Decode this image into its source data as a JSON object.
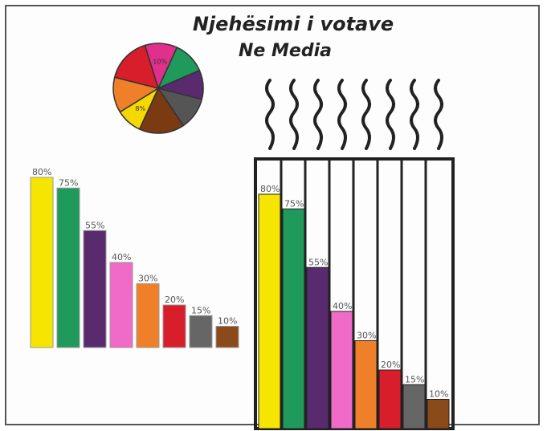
{
  "chart_data": [
    {
      "type": "pie",
      "title": "Njehësimi i votave",
      "subtitle": "Ne Media",
      "slices": [
        {
          "label": "10%",
          "value": 10,
          "color": "#e0308c"
        },
        {
          "label": "",
          "value": 10,
          "color": "#1f9a5a"
        },
        {
          "label": "",
          "value": 9,
          "color": "#5a2a6e"
        },
        {
          "label": "",
          "value": 10,
          "color": "#555555"
        },
        {
          "label": "",
          "value": 14,
          "color": "#7a3a12"
        },
        {
          "label": "8%",
          "value": 8,
          "color": "#f5d800"
        },
        {
          "label": "",
          "value": 11,
          "color": "#f07f2a"
        },
        {
          "label": "",
          "value": 14,
          "color": "#d81e2a"
        }
      ]
    },
    {
      "type": "bar",
      "categories": [
        "",
        "",
        "",
        "",
        "",
        "",
        "",
        ""
      ],
      "labels": [
        "80%",
        "75%",
        "55%",
        "40%",
        "30%",
        "20%",
        "15%",
        "10%"
      ],
      "values": [
        80,
        75,
        55,
        40,
        30,
        20,
        15,
        10
      ],
      "colors": [
        "#f5e500",
        "#1f9a5a",
        "#5a2a6e",
        "#f06ac8",
        "#f07f2a",
        "#d81e2a",
        "#666666",
        "#8a4a1a"
      ],
      "ylim": [
        0,
        100
      ]
    },
    {
      "type": "bar",
      "categories": [
        "",
        "",
        "",
        "",
        "",
        "",
        "",
        ""
      ],
      "labels": [
        "80%",
        "75%",
        "55%",
        "40%",
        "30%",
        "20%",
        "15%",
        "10%"
      ],
      "values": [
        80,
        75,
        55,
        40,
        30,
        20,
        15,
        10
      ],
      "colors": [
        "#f5e500",
        "#1f9a5a",
        "#5a2a6e",
        "#f06ac8",
        "#f07f2a",
        "#d81e2a",
        "#666666",
        "#8a4a1a"
      ],
      "ylim": [
        0,
        100
      ]
    }
  ]
}
